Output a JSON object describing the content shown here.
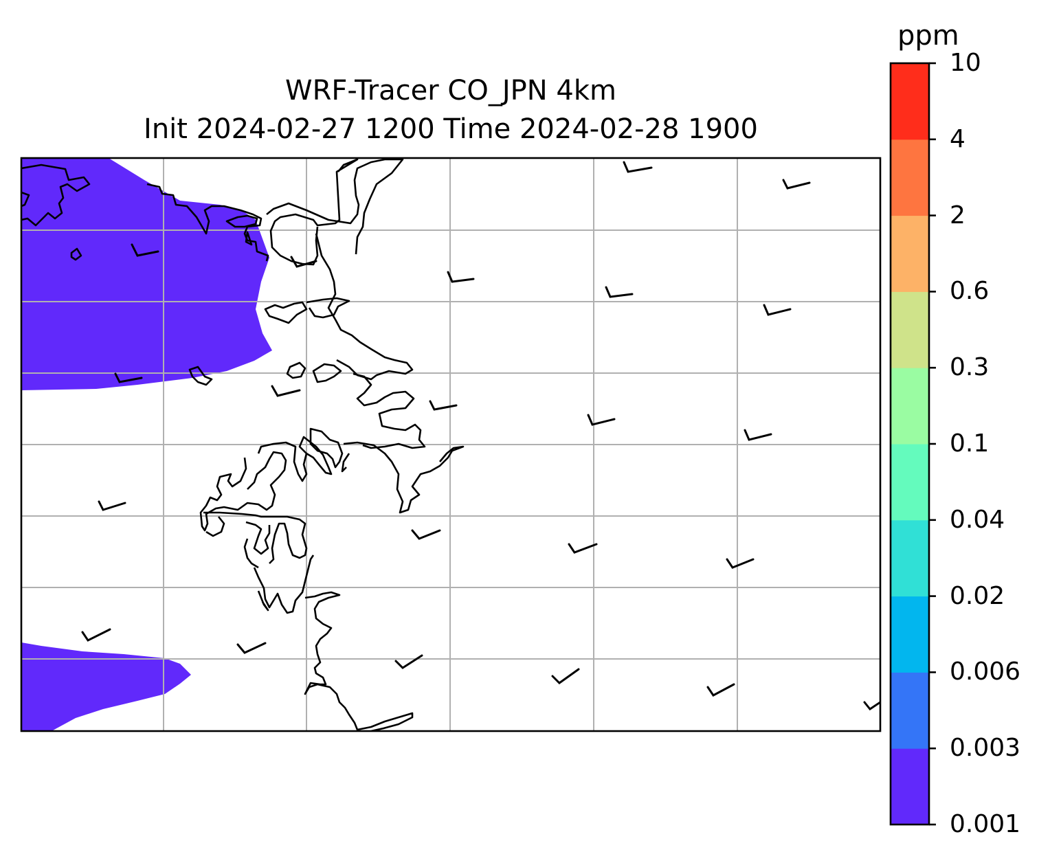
{
  "title_line1": "WRF-Tracer CO_JPN 4km",
  "title_line2": "Init 2024-02-27 1200 Time 2024-02-28 1900",
  "colorbar": {
    "unit": "ppm",
    "levels": [
      "0.001",
      "0.003",
      "0.006",
      "0.02",
      "0.04",
      "0.1",
      "0.3",
      "0.6",
      "2",
      "4",
      "10"
    ],
    "colors": [
      "#6129fb",
      "#3475f7",
      "#02b6ee",
      "#30e0d6",
      "#64fbbd",
      "#9afca2",
      "#cfe38a",
      "#fdb267",
      "#fe7540",
      "#ff2d1b"
    ]
  },
  "map": {
    "tracer_fill_color": "#6129fb",
    "gridlines": "on",
    "wind_barbs": "yes"
  }
}
